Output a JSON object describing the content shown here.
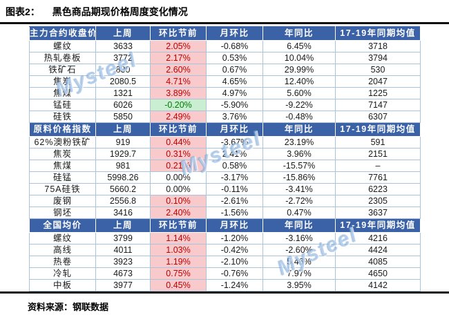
{
  "title": {
    "prefix": "图表2：",
    "text": "黑色商品期现价格周度变化情况"
  },
  "source": "资料来源：钢联数据",
  "watermark": "Mysteel",
  "columns": [
    "上周",
    "环比节前",
    "月环比",
    "年同比",
    "17-19年同期均值"
  ],
  "colors": {
    "header_bg": "#3b61a6",
    "header_text": "#ffffff",
    "grid_border": "#a9c3de",
    "increase_bg": "#f8cacc",
    "increase_text": "#c00000",
    "decrease_bg": "#c9eed2",
    "decrease_text": "#007a00",
    "rule": "#0d0d0d"
  },
  "sections": [
    {
      "header": "主力合约收盘价",
      "rows": [
        {
          "name": "螺纹",
          "last_week": "3633",
          "wow": "2.05%",
          "trend": "up",
          "mom": "-0.68%",
          "yoy": "6.45%",
          "avg_17_19": "3718"
        },
        {
          "name": "热轧卷板",
          "last_week": "3772",
          "wow": "2.17%",
          "trend": "up",
          "mom": "0.53%",
          "yoy": "10.04%",
          "avg_17_19": "3794"
        },
        {
          "name": "铁矿石",
          "last_week": "830",
          "wow": "2.60%",
          "trend": "up",
          "mom": "0.67%",
          "yoy": "29.99%",
          "avg_17_19": "530"
        },
        {
          "name": "焦炭",
          "last_week": "2080.5",
          "wow": "4.71%",
          "trend": "up",
          "mom": "4.65%",
          "yoy": "12.40%",
          "avg_17_19": "2047"
        },
        {
          "name": "焦煤",
          "last_week": "1321",
          "wow": "3.89%",
          "trend": "up",
          "mom": "4.97%",
          "yoy": "5.60%",
          "avg_17_19": "1225"
        },
        {
          "name": "锰硅",
          "last_week": "6026",
          "wow": "-0.20%",
          "trend": "down",
          "mom": "-5.90%",
          "yoy": "-9.22%",
          "avg_17_19": "7147"
        },
        {
          "name": "硅铁",
          "last_week": "5850",
          "wow": "2.49%",
          "trend": "up",
          "mom": "3.76%",
          "yoy": "-0.48%",
          "avg_17_19": "6307"
        }
      ]
    },
    {
      "header": "原料价格指数",
      "rows": [
        {
          "name": "62%澳粉铁矿",
          "last_week": "919",
          "wow": "0.44%",
          "trend": "up",
          "mom": "-3.67%",
          "yoy": "23.19%",
          "avg_17_19": "591"
        },
        {
          "name": "焦炭",
          "last_week": "1929.7",
          "wow": "0.31%",
          "trend": "up",
          "mom": "2.41%",
          "yoy": "3.96%",
          "avg_17_19": "2151"
        },
        {
          "name": "焦煤",
          "last_week": "981",
          "wow": "0.21%",
          "trend": "up",
          "mom": "0.58%",
          "yoy": "-15.57%",
          "avg_17_19": "–"
        },
        {
          "name": "硅锰",
          "last_week": "5998.26",
          "wow": "0.00%",
          "trend": "flat",
          "mom": "-3.17%",
          "yoy": "-15.86%",
          "avg_17_19": "7761"
        },
        {
          "name": "75A硅铁",
          "last_week": "5660.2",
          "wow": "0.00%",
          "trend": "flat",
          "mom": "-0.11%",
          "yoy": "-3.41%",
          "avg_17_19": "6223"
        },
        {
          "name": "废钢",
          "last_week": "2556.8",
          "wow": "0.10%",
          "trend": "up",
          "mom": "-2.61%",
          "yoy": "-2.72%",
          "avg_17_19": "2305"
        },
        {
          "name": "钢坯",
          "last_week": "3416",
          "wow": "2.40%",
          "trend": "up",
          "mom": "-1.56%",
          "yoy": "0.47%",
          "avg_17_19": "3637"
        }
      ]
    },
    {
      "header": "全国均价",
      "rows": [
        {
          "name": "螺纹",
          "last_week": "3799",
          "wow": "1.14%",
          "trend": "up",
          "mom": "-1.20%",
          "yoy": "-3.16%",
          "avg_17_19": "4216"
        },
        {
          "name": "高线",
          "last_week": "4011",
          "wow": "1.03%",
          "trend": "up",
          "mom": "-0.42%",
          "yoy": "-2.60%",
          "avg_17_19": "4424"
        },
        {
          "name": "热卷",
          "last_week": "3923",
          "wow": "1.19%",
          "trend": "up",
          "mom": "-2.10%",
          "yoy": "5.46%",
          "avg_17_19": "4085"
        },
        {
          "name": "冷轧",
          "last_week": "4673",
          "wow": "0.75%",
          "trend": "up",
          "mom": "-0.76%",
          "yoy": "7.97%",
          "avg_17_19": "4650"
        },
        {
          "name": "中板",
          "last_week": "3977",
          "wow": "0.45%",
          "trend": "up",
          "mom": "-1.24%",
          "yoy": "3.95%",
          "avg_17_19": "4142"
        }
      ]
    }
  ]
}
